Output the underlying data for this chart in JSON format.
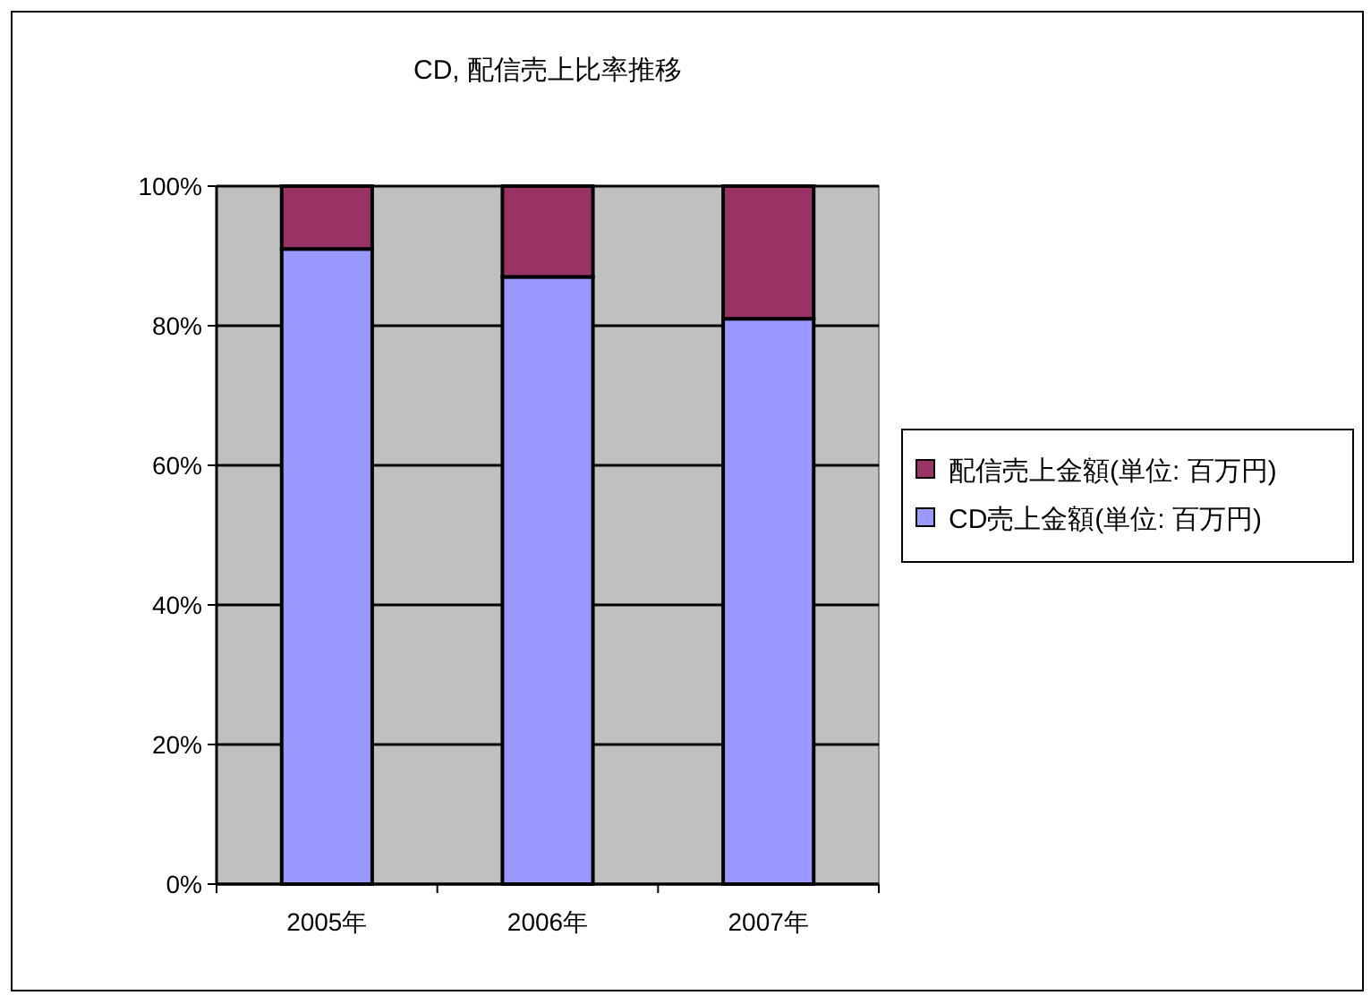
{
  "chart_data": {
    "type": "bar",
    "title": "CD, 配信売上比率推移",
    "categories": [
      "2005年",
      "2006年",
      "2007年"
    ],
    "stacked": true,
    "series": [
      {
        "name": "CD売上金額(単位: 百万円)",
        "color": "#9999ff",
        "values": [
          91,
          87,
          81
        ]
      },
      {
        "name": "配信売上金額(単位: 百万円)",
        "color": "#993366",
        "values": [
          9,
          13,
          19
        ]
      }
    ],
    "ylim": [
      0,
      100
    ],
    "yticks": [
      {
        "value": 0,
        "label": "0%"
      },
      {
        "value": 20,
        "label": "20%"
      },
      {
        "value": 40,
        "label": "40%"
      },
      {
        "value": 60,
        "label": "60%"
      },
      {
        "value": 80,
        "label": "80%"
      },
      {
        "value": 100,
        "label": "100%"
      }
    ],
    "grid": "y",
    "legend": "right"
  }
}
